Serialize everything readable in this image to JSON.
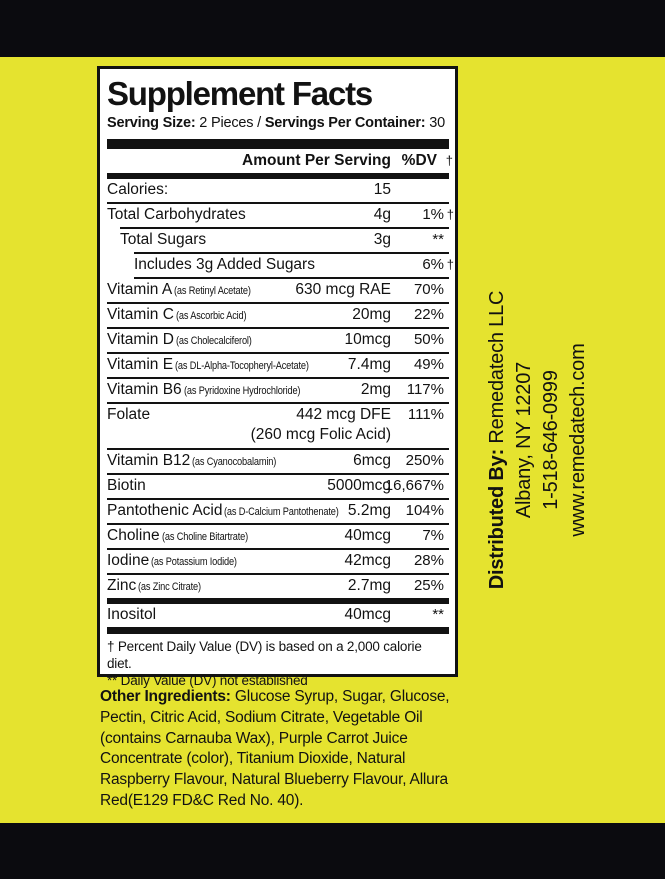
{
  "colors": {
    "background": "#e5e32f",
    "bar": "#0b0b0f",
    "panel_bg": "#ffffff",
    "text": "#121212"
  },
  "panel": {
    "title": "Supplement Facts",
    "serving": {
      "label1": "Serving Size:",
      "value1": " 2 Pieces / ",
      "label2": "Servings Per Container:",
      "value2": " 30"
    },
    "header": {
      "amount": "Amount Per Serving",
      "dv": "%DV",
      "dagger": "†"
    },
    "rows": [
      {
        "name": "Calories:",
        "amount": "15",
        "dv": "",
        "indent": 0
      },
      {
        "name": "Total Carbohydrates",
        "amount": "4g",
        "dv": "1%",
        "dagger": "†",
        "indent": 0,
        "rule_before": 0
      },
      {
        "name": "Total Sugars",
        "amount": "3g",
        "dv": "**",
        "indent": 1,
        "rule_before": 1
      },
      {
        "name": "Includes 3g Added Sugars",
        "amount": "",
        "dv": "6%",
        "dagger": "†",
        "indent": 2,
        "rule_before": 2
      },
      {
        "name": "Vitamin A",
        "note": "(as Retinyl Acetate)",
        "amount": "630 mcg RAE",
        "dv": "70%",
        "indent": 0,
        "rule_before": 2
      },
      {
        "name": "Vitamin C",
        "note": "(as Ascorbic Acid)",
        "amount": "20mg",
        "dv": "22%",
        "indent": 0,
        "rule_before": 0
      },
      {
        "name": "Vitamin D",
        "note": "(as Cholecalciferol)",
        "amount": "10mcg",
        "dv": "50%",
        "indent": 0,
        "rule_before": 0
      },
      {
        "name": "Vitamin E",
        "note": "(as DL-Alpha-Tocopheryl-Acetate)",
        "amount": "7.4mg",
        "dv": "49%",
        "indent": 0,
        "rule_before": 0
      },
      {
        "name": "Vitamin B6",
        "note": "(as Pyridoxine Hydrochloride)",
        "amount": "2mg",
        "dv": "117%",
        "indent": 0,
        "rule_before": 0
      },
      {
        "name": "Folate",
        "amount": "442 mcg DFE",
        "dv": "111%",
        "sub": "(260 mcg Folic Acid)",
        "indent": 0,
        "rule_before": 0
      },
      {
        "name": "Vitamin B12",
        "note": "(as Cyanocobalamin)",
        "amount": "6mcg",
        "dv": "250%",
        "indent": 0,
        "rule_before": 0
      },
      {
        "name": "Biotin",
        "amount": "5000mcg",
        "dv": "16,667%",
        "indent": 0,
        "rule_before": 0
      },
      {
        "name": "Pantothenic Acid",
        "note": "(as D-Calcium Pantothenate)",
        "amount": "5.2mg",
        "dv": "104%",
        "indent": 0,
        "rule_before": 0
      },
      {
        "name": "Choline",
        "note": "(as Choline Bitartrate)",
        "amount": "40mcg",
        "dv": "7%",
        "indent": 0,
        "rule_before": 0
      },
      {
        "name": "Iodine",
        "note": "(as Potassium Iodide)",
        "amount": "42mcg",
        "dv": "28%",
        "indent": 0,
        "rule_before": 0
      },
      {
        "name": "Zinc",
        "note": "(as Zinc Citrate)",
        "amount": "2.7mg",
        "dv": "25%",
        "indent": 0,
        "rule_before": 0
      },
      {
        "name": "Inositol",
        "amount": "40mcg",
        "dv": "**",
        "indent": 0,
        "rule_before": "thick",
        "thick_after": true
      }
    ],
    "footnotes": [
      "† Percent Daily Value (DV) is based on a 2,000 calorie diet.",
      "** Daily Value (DV) not established"
    ]
  },
  "other_ingredients": {
    "label": "Other Ingredients:",
    "text": " Glucose Syrup, Sugar, Glucose, Pectin, Citric Acid, Sodium Citrate, Vegetable Oil (contains Carnauba Wax), Purple Carrot Juice Concentrate (color), Titanium Dioxide, Natural Raspberry Flavour, Natural Blueberry Flavour, Allura Red(E129 FD&C Red No. 40)."
  },
  "distributor": {
    "label": "Distributed By:",
    "company": " Remedatech LLC",
    "address": "Albany, NY 12207",
    "phone": "1-518-646-0999",
    "website": "www.remedatech.com"
  }
}
